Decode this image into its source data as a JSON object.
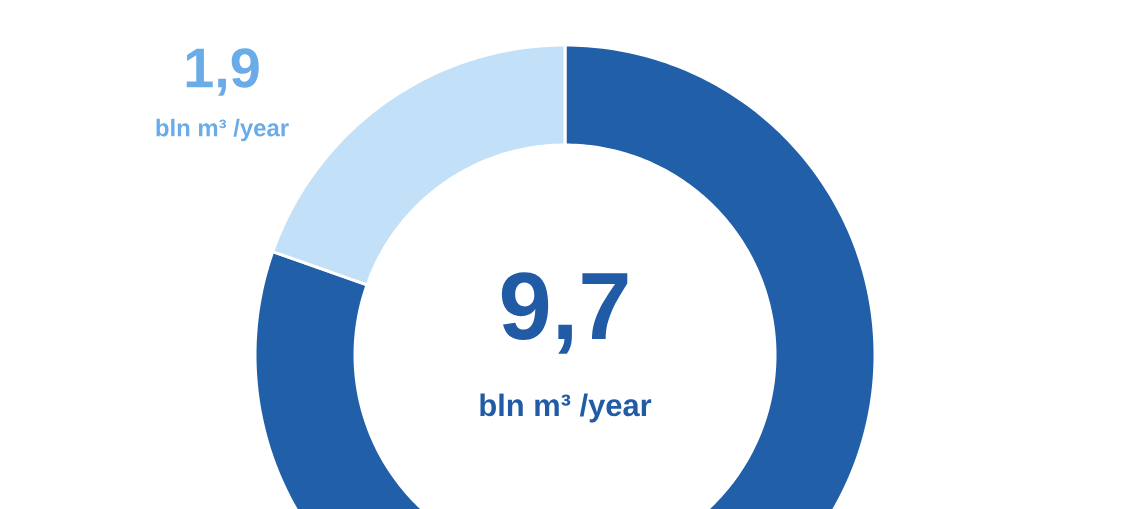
{
  "chart_data": {
    "type": "donut",
    "categories": [
      null,
      null
    ],
    "values": [
      7.8,
      1.9
    ],
    "colors": [
      "#2160a8",
      "#c2e0f8"
    ],
    "value_labels": [
      null,
      "1,9"
    ],
    "annotations": [
      "9,7",
      "bln m³ /year",
      "bln m³ /year"
    ]
  }
}
